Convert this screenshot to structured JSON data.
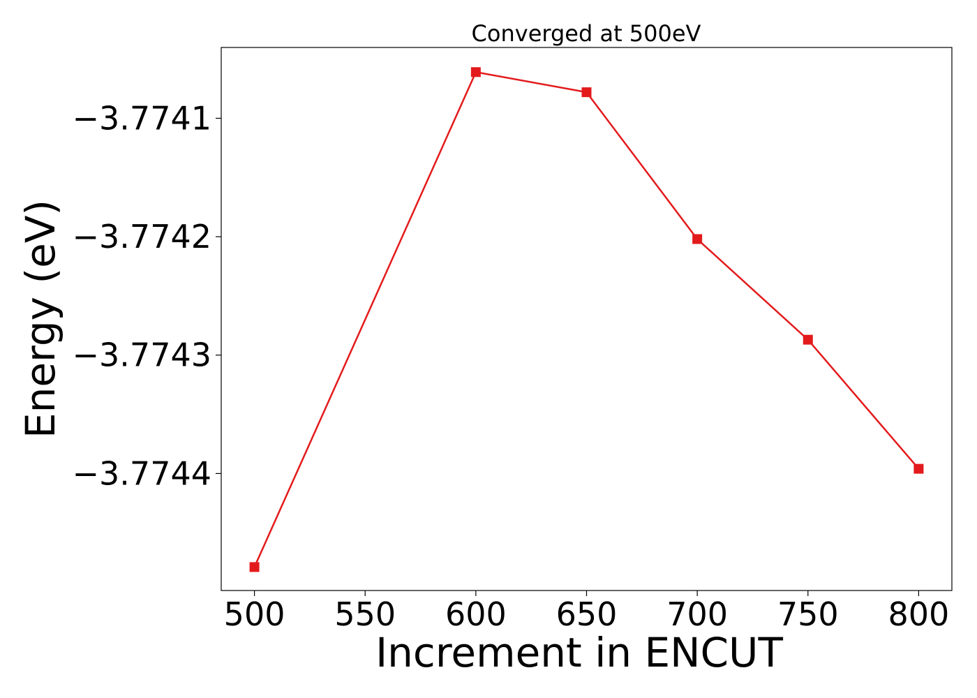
{
  "chart_data": {
    "type": "line",
    "title": "Converged at 500eV",
    "xlabel": "Increment in ENCUT",
    "ylabel": "Energy (eV)",
    "x": [
      500,
      600,
      650,
      700,
      750,
      800
    ],
    "series": [
      {
        "values": [
          -3.774479,
          -3.774061,
          -3.774078,
          -3.774202,
          -3.774287,
          -3.774396
        ]
      }
    ],
    "xlim": [
      485,
      815
    ],
    "ylim": [
      -3.7744988,
      -3.7740402
    ],
    "xticks": [
      500,
      550,
      600,
      650,
      700,
      750,
      800
    ],
    "xtick_labels": [
      "500",
      "550",
      "600",
      "650",
      "700",
      "750",
      "800"
    ],
    "yticks": [
      -3.7741,
      -3.7742,
      -3.7743,
      -3.7744
    ],
    "ytick_labels": [
      "−3.7741",
      "−3.7742",
      "−3.7743",
      "−3.7744"
    ],
    "grid": false,
    "legend": "none",
    "colors": {
      "series": "#e31a1c",
      "axes": "#000000"
    },
    "marker": "square"
  }
}
